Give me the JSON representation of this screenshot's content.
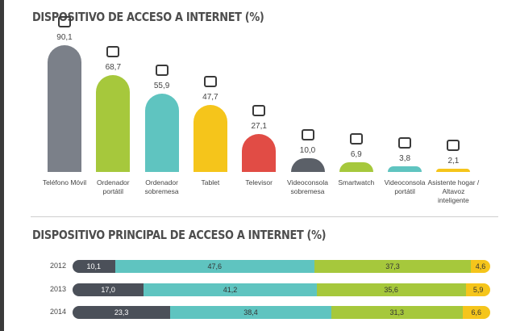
{
  "chart_data": [
    {
      "type": "bar",
      "title": "DISPOSITIVO DE ACCESO A INTERNET (%)",
      "categories": [
        "Teléfono Móvil",
        "Ordenador portátil",
        "Ordenador sobremesa",
        "Tablet",
        "Televisor",
        "Videoconsola sobremesa",
        "Smartwatch",
        "Videoconsola portátil",
        "Asistente hogar / Altavoz inteligente"
      ],
      "values": [
        90.1,
        68.7,
        55.9,
        47.7,
        27.1,
        10.0,
        6.9,
        3.8,
        2.1
      ],
      "value_labels": [
        "90,1",
        "68,7",
        "55,9",
        "47,7",
        "27,1",
        "10,0",
        "6,9",
        "3,8",
        "2,1"
      ],
      "colors": [
        "#7b8089",
        "#a6c83c",
        "#5fc4c0",
        "#f5c51b",
        "#e14c45",
        "#5b6068",
        "#a6c83c",
        "#5fc4c0",
        "#f5c51b"
      ],
      "ylim": [
        0,
        100
      ]
    },
    {
      "type": "stacked-barh",
      "title": "DISPOSITIVO PRINCIPAL DE ACCESO A INTERNET (%)",
      "categories": [
        "2012",
        "2013",
        "2014"
      ],
      "series": [
        {
          "color": "#4b5059",
          "values": [
            10.1,
            17.0,
            23.3
          ],
          "value_labels": [
            "10,1",
            "17,0",
            "23,3"
          ]
        },
        {
          "color": "#5fc4c0",
          "values": [
            47.6,
            41.2,
            38.4
          ],
          "value_labels": [
            "47,6",
            "41,2",
            "38,4"
          ]
        },
        {
          "color": "#a6c83c",
          "values": [
            37.3,
            35.6,
            31.3
          ],
          "value_labels": [
            "37,3",
            "35,6",
            "31,3"
          ]
        },
        {
          "color": "#f5c51b",
          "values": [
            4.6,
            5.9,
            6.6
          ],
          "value_labels": [
            "4,6",
            "5,9",
            "6,6"
          ]
        }
      ],
      "xlim": [
        0,
        100
      ]
    }
  ]
}
